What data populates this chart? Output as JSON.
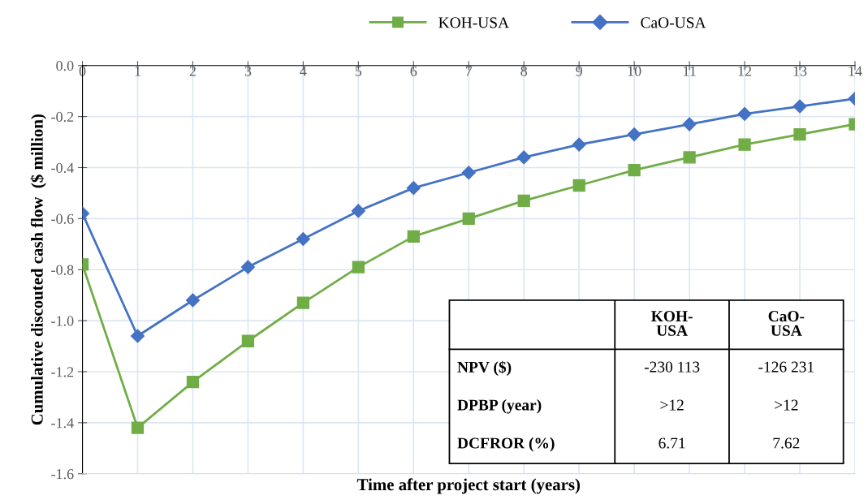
{
  "chart_data": {
    "type": "line",
    "xlabel": "Time after project start (years)",
    "ylabel": "Cumulative discouted cash flow  ($ million)",
    "x": [
      0,
      1,
      2,
      3,
      4,
      5,
      6,
      7,
      8,
      9,
      10,
      11,
      12,
      13,
      14
    ],
    "series": [
      {
        "name": "KOH-USA",
        "color": "#70ad47",
        "marker": "square",
        "values": [
          -0.78,
          -1.42,
          -1.24,
          -1.08,
          -0.93,
          -0.79,
          -0.67,
          -0.6,
          -0.53,
          -0.47,
          -0.41,
          -0.36,
          -0.31,
          -0.27,
          -0.23
        ]
      },
      {
        "name": "CaO-USA",
        "color": "#4472c4",
        "marker": "diamond",
        "values": [
          -0.58,
          -1.06,
          -0.92,
          -0.79,
          -0.68,
          -0.57,
          -0.48,
          -0.42,
          -0.36,
          -0.31,
          -0.27,
          -0.23,
          -0.19,
          -0.16,
          -0.13
        ]
      }
    ],
    "xlim": [
      0,
      14
    ],
    "xticks": [
      0,
      1,
      2,
      3,
      4,
      5,
      6,
      7,
      8,
      9,
      10,
      11,
      12,
      13,
      14
    ],
    "ylim": [
      -1.6,
      0
    ],
    "yticks": [
      {
        "value": -1.6,
        "label": "-1.6"
      },
      {
        "value": -1.4,
        "label": "-1.4"
      },
      {
        "value": -1.2,
        "label": "-1.2"
      },
      {
        "value": -1.0,
        "label": "-1.0"
      },
      {
        "value": -0.8,
        "label": "-0.8"
      },
      {
        "value": -0.6,
        "label": "-0.6"
      },
      {
        "value": -0.4,
        "label": "-0.4"
      },
      {
        "value": -0.2,
        "label": "-0.2"
      },
      {
        "value": 0,
        "label": "0.0"
      }
    ],
    "grid": true,
    "legend": "top",
    "line_style": "solid",
    "annotations": [
      "KOH-\nUSA",
      "CaO-\nUSA",
      "NPV ($)",
      "-230 113",
      "-126 231",
      "DPBP (year)",
      ">12",
      ">12",
      "DCFROR (%)",
      "6.71",
      "7.62"
    ]
  }
}
